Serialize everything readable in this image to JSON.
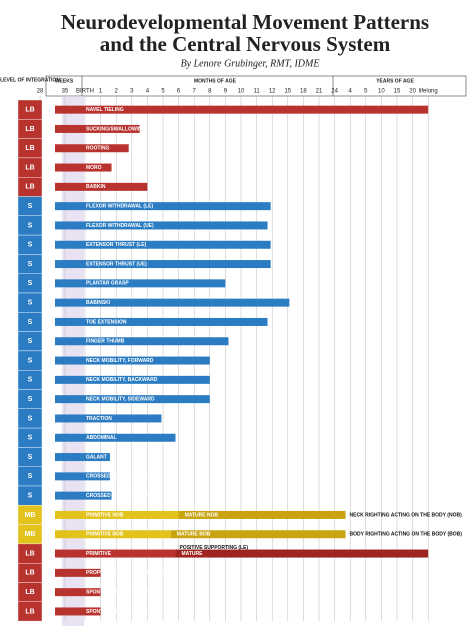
{
  "chart_data": {
    "type": "timeline",
    "title": "Neurodevelopmental Movement Patterns",
    "title_line2": "and the Central Nervous System",
    "subtitle": "By Lenore Grubinger, RMT, IDME",
    "level_header": "LEVEL OF INTEGRATION",
    "weeks_header": "WEEKS",
    "months_header": "MONTHS OF AGE",
    "years_header": "YEARS OF AGE",
    "xlim": [
      0,
      24
    ],
    "xticks": [
      {
        "value": 0,
        "label": "28"
      },
      {
        "value": 1,
        "label": "35"
      },
      {
        "value": 2,
        "label": "BIRTH"
      },
      {
        "value": 3,
        "label": "1"
      },
      {
        "value": 4,
        "label": "2"
      },
      {
        "value": 5,
        "label": "3"
      },
      {
        "value": 6,
        "label": "4"
      },
      {
        "value": 7,
        "label": "5"
      },
      {
        "value": 8,
        "label": "6"
      },
      {
        "value": 9,
        "label": "7"
      },
      {
        "value": 10,
        "label": "8"
      },
      {
        "value": 11,
        "label": "9"
      },
      {
        "value": 12,
        "label": "10"
      },
      {
        "value": 13,
        "label": "11"
      },
      {
        "value": 14,
        "label": "12"
      },
      {
        "value": 15,
        "label": "15"
      },
      {
        "value": 16,
        "label": "18"
      },
      {
        "value": 17,
        "label": "21"
      },
      {
        "value": 18,
        "label": "24"
      },
      {
        "value": 19,
        "label": "4"
      },
      {
        "value": 20,
        "label": "5"
      },
      {
        "value": 21,
        "label": "10"
      },
      {
        "value": 22,
        "label": "15"
      },
      {
        "value": 23,
        "label": "20"
      },
      {
        "value": 24,
        "label": "lifelong"
      }
    ],
    "grid": true,
    "level_colors": {
      "LB": "#b8322e",
      "S": "#2b7cc2",
      "MB": "#e3c21c"
    },
    "rows": [
      {
        "level": "LB",
        "bars": [
          {
            "name": "NAVEL TIELING",
            "start": 0.6,
            "end": 24
          }
        ]
      },
      {
        "level": "LB",
        "bars": [
          {
            "name": "SUCKING/SWALLOWING",
            "start": 0.6,
            "end": 5.5
          }
        ]
      },
      {
        "level": "LB",
        "bars": [
          {
            "name": "ROOTING",
            "start": 0.6,
            "end": 4.8
          }
        ]
      },
      {
        "level": "LB",
        "bars": [
          {
            "name": "MORO",
            "start": 0.6,
            "end": 3.7
          }
        ]
      },
      {
        "level": "LB",
        "bars": [
          {
            "name": "BABKIN",
            "start": 0.6,
            "end": 6
          }
        ]
      },
      {
        "level": "S",
        "bars": [
          {
            "name": "FLEXOR WITHDRAWAL (LE)",
            "start": 0.6,
            "end": 13.9
          }
        ]
      },
      {
        "level": "S",
        "bars": [
          {
            "name": "FLEXOR WITHDRAWAL (UE)",
            "start": 0.6,
            "end": 13.7
          }
        ]
      },
      {
        "level": "S",
        "bars": [
          {
            "name": "EXTENSOR THRUST (LE)",
            "start": 0.6,
            "end": 13.9
          }
        ]
      },
      {
        "level": "S",
        "bars": [
          {
            "name": "EXTENSOR THRUST (UE)",
            "start": 0.6,
            "end": 13.9
          }
        ]
      },
      {
        "level": "S",
        "bars": [
          {
            "name": "PLANTAR GRASP",
            "start": 0.6,
            "end": 11
          }
        ]
      },
      {
        "level": "S",
        "bars": [
          {
            "name": "BABINSKI",
            "start": 0.6,
            "end": 15.1
          }
        ]
      },
      {
        "level": "S",
        "bars": [
          {
            "name": "TOE EXTENSION",
            "start": 0.6,
            "end": 13.7
          }
        ]
      },
      {
        "level": "S",
        "bars": [
          {
            "name": "FINGER THUMB",
            "start": 0.6,
            "end": 11.2
          }
        ]
      },
      {
        "level": "S",
        "bars": [
          {
            "name": "NECK MOBILITY, FORWARD",
            "start": 0.6,
            "end": 10
          }
        ]
      },
      {
        "level": "S",
        "bars": [
          {
            "name": "NECK MOBILITY, BACKWARD",
            "start": 0.6,
            "end": 10
          }
        ]
      },
      {
        "level": "S",
        "bars": [
          {
            "name": "NECK MOBILITY, SIDEWARD",
            "start": 0.6,
            "end": 10
          }
        ]
      },
      {
        "level": "S",
        "bars": [
          {
            "name": "TRACTION",
            "start": 0.6,
            "end": 6.9
          }
        ]
      },
      {
        "level": "S",
        "bars": [
          {
            "name": "ABDOMINAL",
            "start": 0.6,
            "end": 7.8
          }
        ]
      },
      {
        "level": "S",
        "bars": [
          {
            "name": "GALANT",
            "start": 0.6,
            "end": 3.6
          }
        ]
      },
      {
        "level": "S",
        "bars": [
          {
            "name": "CROSSED EXTENSION (LE)",
            "start": 0.6,
            "end": 3.6
          }
        ]
      },
      {
        "level": "S",
        "bars": [
          {
            "name": "CROSSED EXTENSION (UE)",
            "start": 0.6,
            "end": 3.7
          }
        ]
      },
      {
        "level": "MB",
        "bars": [
          {
            "name": "PRIMITIVE NOB",
            "start": 0.6,
            "end": 8
          },
          {
            "name": "MATURE NOB",
            "start": 8,
            "end": 18.7,
            "color": "#c9a410"
          }
        ],
        "note": "NECK RIGHTING ACTING ON THE BODY (NOB)"
      },
      {
        "level": "MB",
        "bars": [
          {
            "name": "PRIMITIVE BOB",
            "start": 0.6,
            "end": 7.5
          },
          {
            "name": "MATURE BOB",
            "start": 7.5,
            "end": 18.7,
            "color": "#c9a410"
          }
        ],
        "note": "BODY RIGHTING ACTING ON THE BODY (BOB)"
      },
      {
        "level": "LB",
        "bars": [
          {
            "name": "PRIMITIVE",
            "start": 0.6,
            "end": 7.8
          },
          {
            "name": "MATURE",
            "start": 7.8,
            "end": 24,
            "color": "#9e2420"
          }
        ],
        "note": "POSITIVE SUPPORTING (LE)"
      },
      {
        "level": "LB",
        "bars": [
          {
            "name": "PROPRIOCEPTIVE PLACING (LE)",
            "start": 0.6,
            "end": 3
          }
        ]
      },
      {
        "level": "LB",
        "bars": [
          {
            "name": "SPONTANEOUS STEPPING (LE)",
            "start": 0.6,
            "end": 3
          }
        ]
      },
      {
        "level": "LB",
        "bars": [
          {
            "name": "SPONTANEOUS STEPPING (UE)",
            "start": 0.6,
            "end": 3
          }
        ]
      }
    ]
  }
}
